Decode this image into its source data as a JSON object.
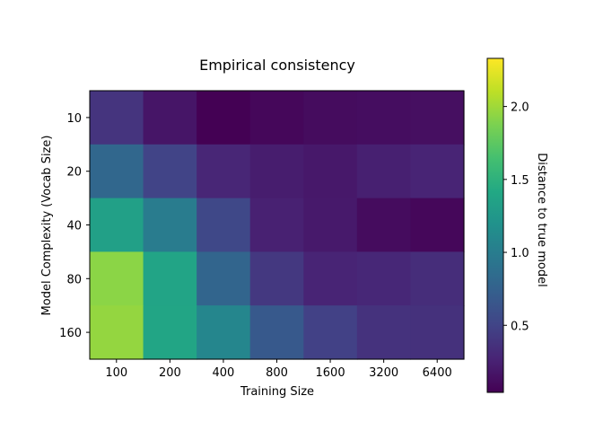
{
  "chart_data": {
    "type": "heatmap",
    "title": "Empirical consistency",
    "xlabel": "Training Size",
    "ylabel": "Model Complexity (Vocab Size)",
    "x_categories": [
      "100",
      "200",
      "400",
      "800",
      "1600",
      "3200",
      "6400"
    ],
    "y_categories": [
      "10",
      "20",
      "40",
      "80",
      "160"
    ],
    "values": [
      [
        0.38,
        0.17,
        0.04,
        0.08,
        0.11,
        0.12,
        0.13
      ],
      [
        0.8,
        0.5,
        0.28,
        0.22,
        0.19,
        0.24,
        0.27
      ],
      [
        1.33,
        0.99,
        0.53,
        0.25,
        0.2,
        0.11,
        0.08
      ],
      [
        1.93,
        1.37,
        0.78,
        0.41,
        0.27,
        0.29,
        0.33
      ],
      [
        1.96,
        1.38,
        1.08,
        0.68,
        0.48,
        0.37,
        0.36
      ]
    ],
    "colorbar": {
      "label": "Distance to true model",
      "range": [
        0.04,
        2.33
      ],
      "ticks": [
        0.5,
        1.0,
        1.5,
        2.0
      ],
      "tick_labels": [
        "0.5",
        "1.0",
        "1.5",
        "2.0"
      ],
      "colormap": "viridis"
    }
  }
}
